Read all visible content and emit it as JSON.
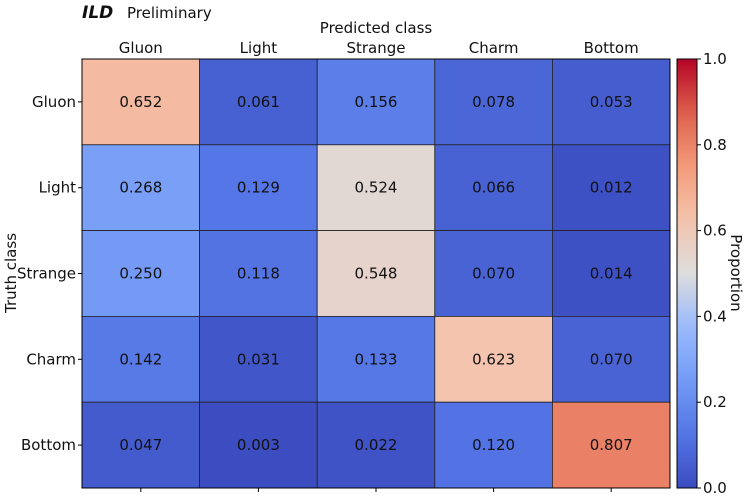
{
  "chart_data": {
    "type": "heatmap",
    "header": {
      "experiment": "ILD",
      "tag": "Preliminary"
    },
    "title": "Predicted class",
    "xlabel": "Predicted class",
    "ylabel": "Truth class",
    "x_categories": [
      "Gluon",
      "Light",
      "Strange",
      "Charm",
      "Bottom"
    ],
    "y_categories": [
      "Gluon",
      "Light",
      "Strange",
      "Charm",
      "Bottom"
    ],
    "values": [
      [
        0.652,
        0.061,
        0.156,
        0.078,
        0.053
      ],
      [
        0.268,
        0.129,
        0.524,
        0.066,
        0.012
      ],
      [
        0.25,
        0.118,
        0.548,
        0.07,
        0.014
      ],
      [
        0.142,
        0.031,
        0.133,
        0.623,
        0.07
      ],
      [
        0.047,
        0.003,
        0.022,
        0.12,
        0.807
      ]
    ],
    "value_labels": [
      [
        "0.652",
        "0.061",
        "0.156",
        "0.078",
        "0.053"
      ],
      [
        "0.268",
        "0.129",
        "0.524",
        "0.066",
        "0.012"
      ],
      [
        "0.250",
        "0.118",
        "0.548",
        "0.070",
        "0.014"
      ],
      [
        "0.142",
        "0.031",
        "0.133",
        "0.623",
        "0.070"
      ],
      [
        "0.047",
        "0.003",
        "0.022",
        "0.120",
        "0.807"
      ]
    ],
    "colorbar": {
      "label": "Proportion",
      "range": [
        0.0,
        1.0
      ],
      "ticks": [
        0.0,
        0.2,
        0.4,
        0.6,
        0.8,
        1.0
      ],
      "tick_labels": [
        "0.0",
        "0.2",
        "0.4",
        "0.6",
        "0.8",
        "1.0"
      ],
      "colormap": "coolwarm"
    }
  }
}
